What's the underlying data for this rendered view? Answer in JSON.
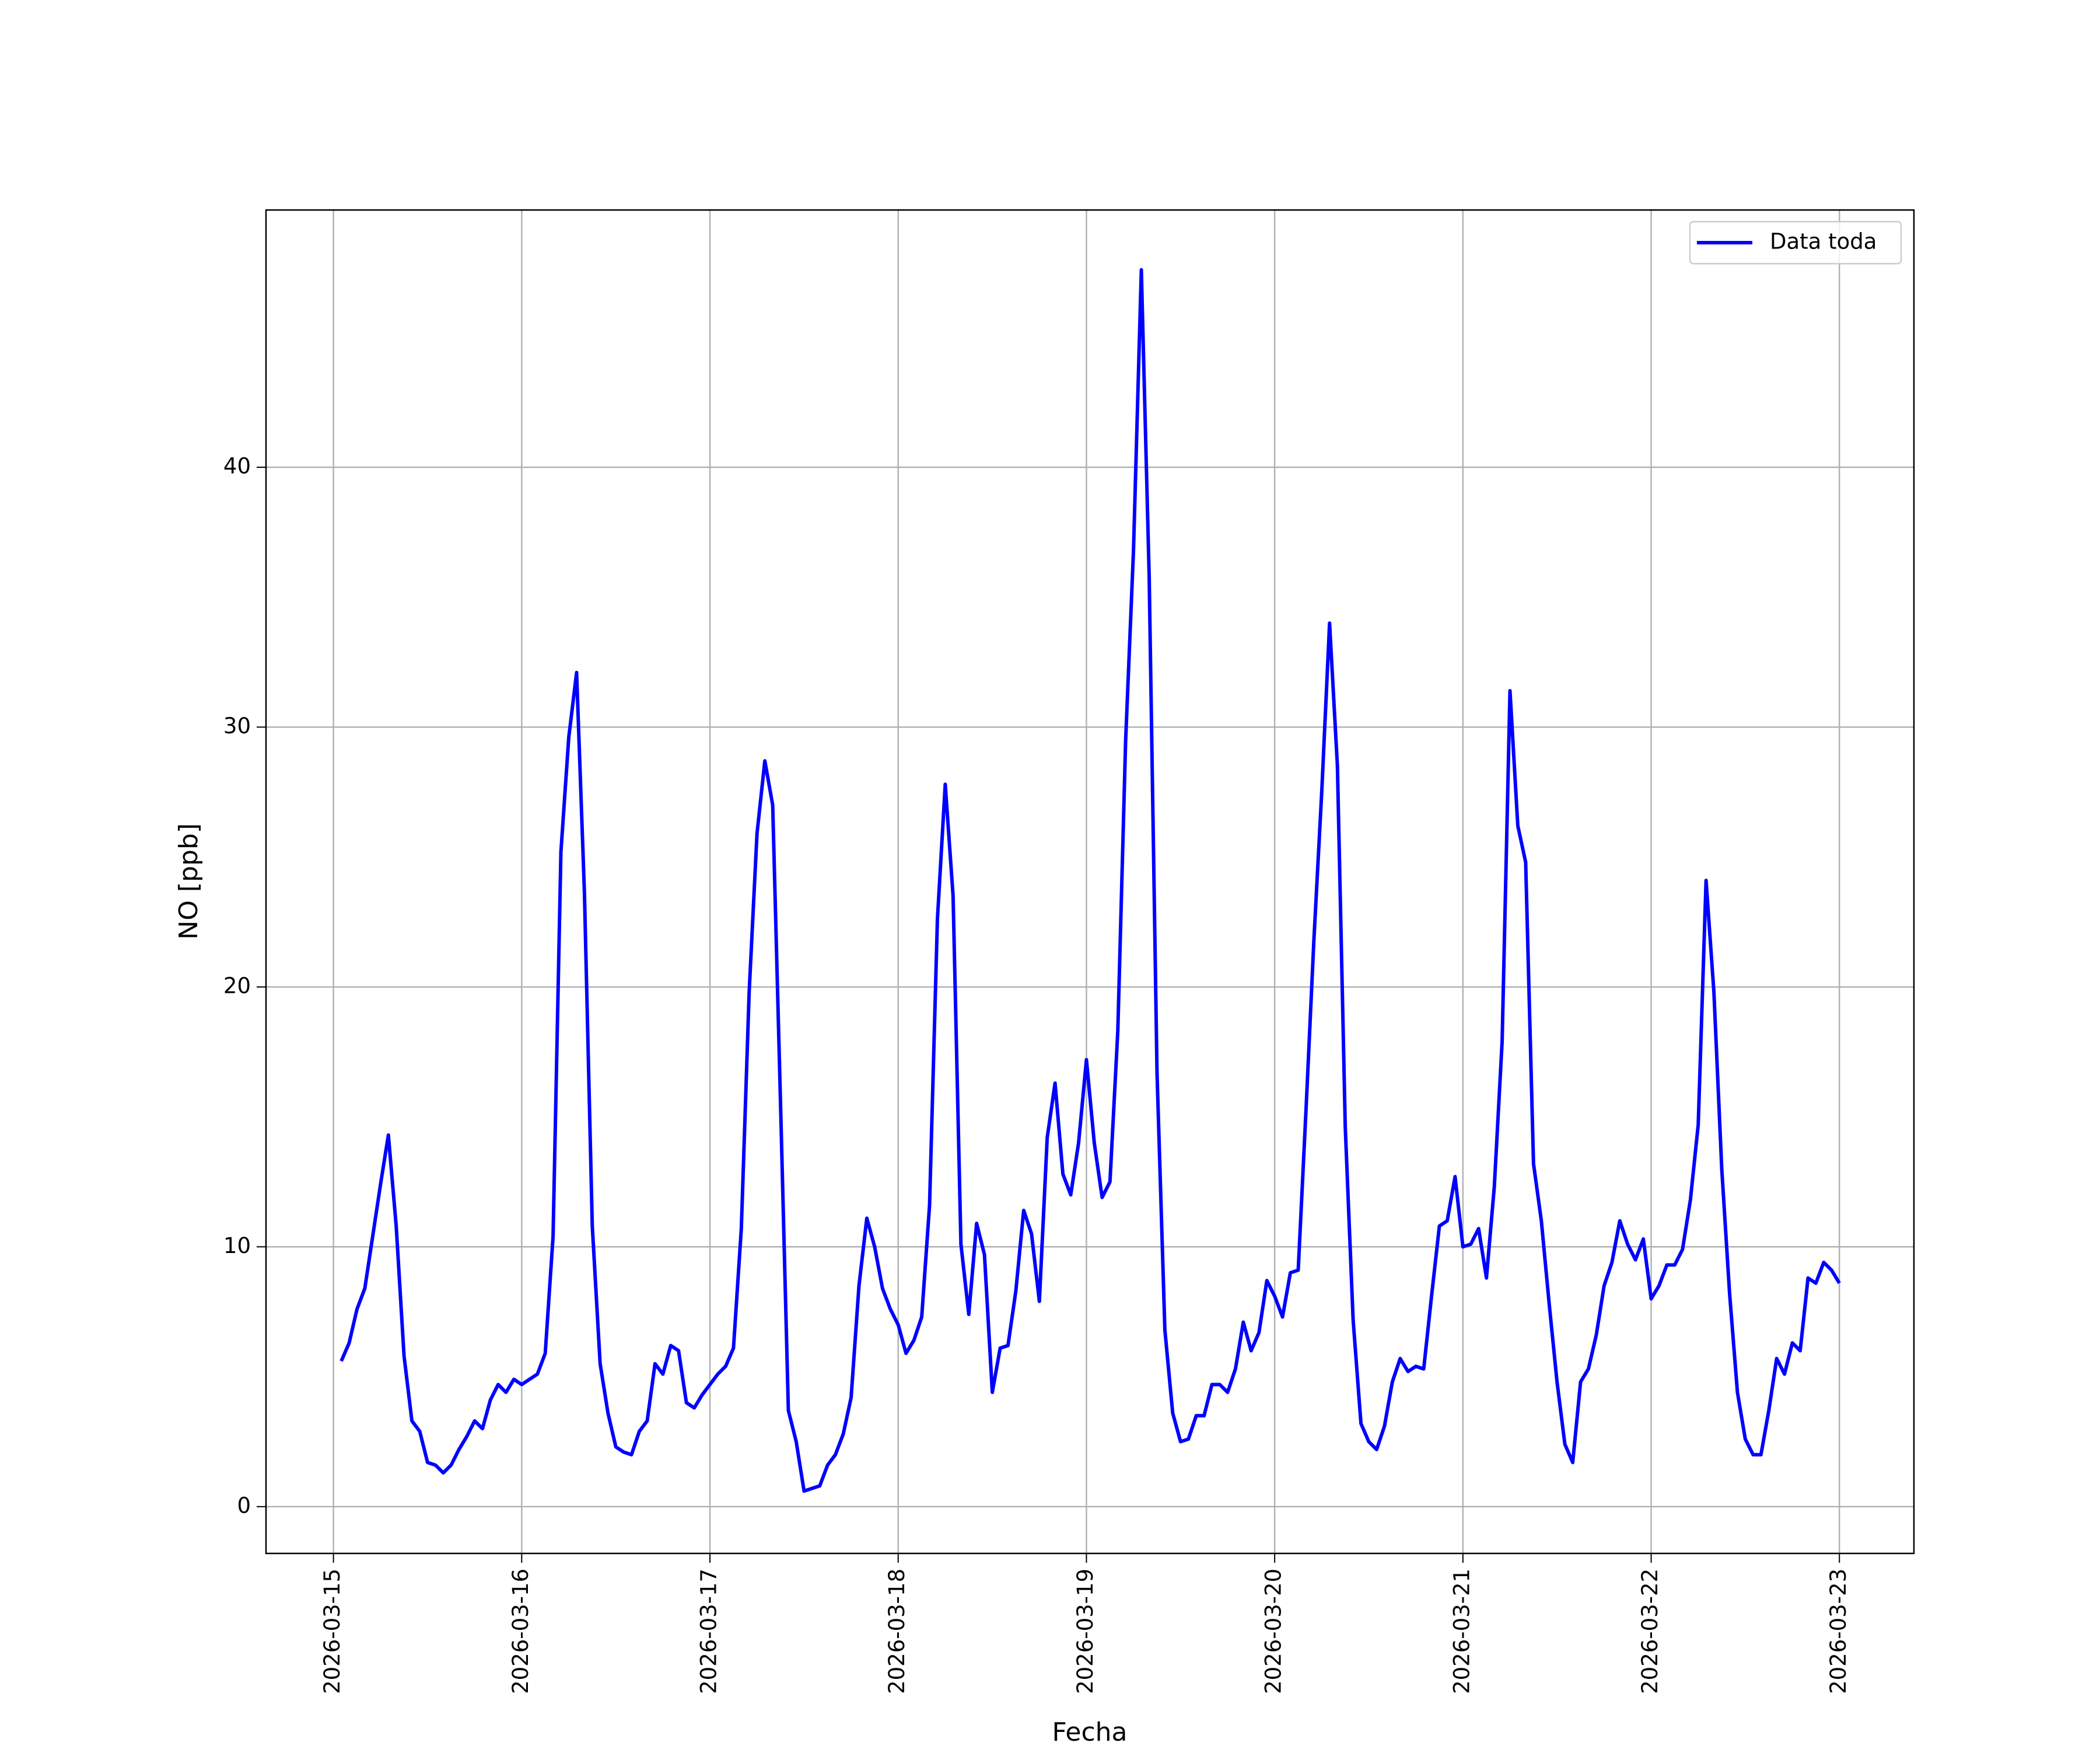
{
  "chart_data": {
    "type": "line",
    "xlabel": "Fecha",
    "ylabel": "NO [ppb]",
    "x": [
      1,
      2,
      3,
      4,
      5,
      6,
      7,
      8,
      9,
      10,
      11,
      12,
      13,
      14,
      15,
      16,
      17,
      18,
      19,
      20,
      21,
      22,
      23,
      24,
      25,
      26,
      27,
      28,
      29,
      30,
      31,
      32,
      33,
      34,
      35,
      36,
      37,
      38,
      39,
      40,
      41,
      42,
      43,
      44,
      45,
      46,
      47,
      48,
      49,
      50,
      51,
      52,
      53,
      54,
      55,
      56,
      57,
      58,
      59,
      60,
      61,
      62,
      63,
      64,
      65,
      66,
      67,
      68,
      69,
      70,
      71,
      72,
      73,
      74,
      75,
      76,
      77,
      78,
      79,
      80,
      81,
      82,
      83,
      84,
      85,
      86,
      87,
      88,
      89,
      90,
      91,
      92,
      93,
      94,
      95,
      96,
      97,
      98,
      99,
      100,
      101,
      102,
      103,
      104,
      105,
      106,
      107,
      108,
      109,
      110,
      111,
      112,
      113,
      114,
      115,
      116,
      117,
      118,
      119,
      120,
      121,
      122,
      123,
      124,
      125,
      126,
      127,
      128,
      129,
      130,
      131,
      132,
      133,
      134,
      135,
      136,
      137,
      138,
      139,
      140,
      141,
      142,
      143,
      144,
      145,
      146,
      147,
      148,
      149,
      150,
      151,
      152,
      153,
      154,
      155,
      156,
      157,
      158,
      159,
      160,
      161,
      162,
      163,
      164,
      165,
      166,
      167,
      168,
      169,
      170,
      171,
      172,
      173,
      174,
      175,
      176,
      177,
      178,
      179,
      180,
      181,
      182,
      183,
      184,
      185,
      186,
      187,
      188,
      189,
      190,
      191,
      192
    ],
    "series": [
      {
        "name": "Data toda",
        "color": "#0000ff",
        "values": [
          5.6,
          6.3,
          7.6,
          8.4,
          10.4,
          12.4,
          14.3,
          10.8,
          5.8,
          3.3,
          2.9,
          1.7,
          1.6,
          1.3,
          1.6,
          2.2,
          2.7,
          3.3,
          3.0,
          4.1,
          4.7,
          4.4,
          4.9,
          4.7,
          4.9,
          5.1,
          5.9,
          10.4,
          25.2,
          29.6,
          32.1,
          23.6,
          10.8,
          5.5,
          3.6,
          2.3,
          2.1,
          2.0,
          2.9,
          3.3,
          5.5,
          5.1,
          6.2,
          6.0,
          4.0,
          3.8,
          4.3,
          4.7,
          5.1,
          5.4,
          6.1,
          10.7,
          19.8,
          25.9,
          28.7,
          27.0,
          15.5,
          3.7,
          2.5,
          0.6,
          0.7,
          0.8,
          1.6,
          2.0,
          2.8,
          4.2,
          8.5,
          11.1,
          10.0,
          8.4,
          7.6,
          7.0,
          5.9,
          6.4,
          7.3,
          11.6,
          22.6,
          27.8,
          23.5,
          10.1,
          7.4,
          10.9,
          9.7,
          4.4,
          6.1,
          6.2,
          8.3,
          11.4,
          10.5,
          7.9,
          14.2,
          16.3,
          12.8,
          12.0,
          14.0,
          17.2,
          14.0,
          11.9,
          12.5,
          18.3,
          29.5,
          36.8,
          47.6,
          35.8,
          16.7,
          6.8,
          3.6,
          2.5,
          2.6,
          3.5,
          3.5,
          4.7,
          4.7,
          4.4,
          5.3,
          7.1,
          6.0,
          6.7,
          8.7,
          8.1,
          7.3,
          9.0,
          9.1,
          15.3,
          21.8,
          27.5,
          34.0,
          28.5,
          14.6,
          7.2,
          3.2,
          2.5,
          2.2,
          3.1,
          4.8,
          5.7,
          5.2,
          5.4,
          5.3,
          8.1,
          10.8,
          11.0,
          12.7,
          10.0,
          10.1,
          10.7,
          8.8,
          12.3,
          17.9,
          31.4,
          26.2,
          24.8,
          13.2,
          11.0,
          7.8,
          4.8,
          2.4,
          1.7,
          4.8,
          5.3,
          6.6,
          8.5,
          9.4,
          11.0,
          10.1,
          9.5,
          10.3,
          8.0,
          8.5,
          9.3,
          9.3,
          9.9,
          11.8,
          14.7,
          24.1,
          19.8,
          13.0,
          8.2,
          4.4,
          2.6,
          2.0,
          2.0,
          3.7,
          5.7,
          5.1,
          6.3,
          6.0,
          8.8,
          8.6,
          9.4,
          9.1,
          8.6
        ]
      }
    ],
    "xlim": [
      -8.6,
      201.5
    ],
    "xticks": [
      {
        "value": 0,
        "label": "2026-03-15"
      },
      {
        "value": 24,
        "label": "2026-03-16"
      },
      {
        "value": 48,
        "label": "2026-03-17"
      },
      {
        "value": 72,
        "label": "2026-03-18"
      },
      {
        "value": 96,
        "label": "2026-03-19"
      },
      {
        "value": 120,
        "label": "2026-03-20"
      },
      {
        "value": 144,
        "label": "2026-03-21"
      },
      {
        "value": 168,
        "label": "2026-03-22"
      },
      {
        "value": 192,
        "label": "2026-03-23"
      }
    ],
    "ylim": [
      -1.8,
      49.9
    ],
    "yticks": [
      0,
      10,
      20,
      30,
      40
    ],
    "grid": true,
    "legend": "upper-right"
  }
}
